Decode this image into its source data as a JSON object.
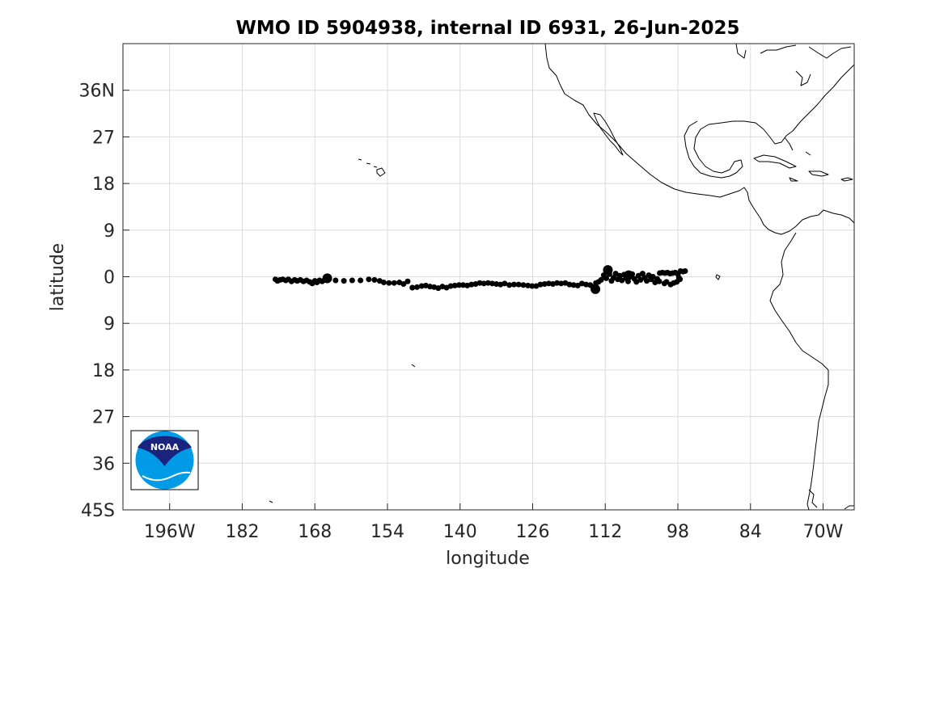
{
  "title": "WMO ID 5904938, internal ID 6931, 26-Jun-2025",
  "map": {
    "xlabel": "longitude",
    "ylabel": "latitude",
    "lon_range": [
      -205,
      -64
    ],
    "lat_range": [
      -45,
      45
    ],
    "x_ticks": [
      {
        "lon": -196,
        "label": "196W"
      },
      {
        "lon": -182,
        "label": "182"
      },
      {
        "lon": -168,
        "label": "168"
      },
      {
        "lon": -154,
        "label": "154"
      },
      {
        "lon": -140,
        "label": "140"
      },
      {
        "lon": -126,
        "label": "126"
      },
      {
        "lon": -112,
        "label": "112"
      },
      {
        "lon": -98,
        "label": "98"
      },
      {
        "lon": -84,
        "label": "84"
      },
      {
        "lon": -70,
        "label": "70W"
      }
    ],
    "y_ticks": [
      {
        "lat": 36,
        "label": "36N"
      },
      {
        "lat": 27,
        "label": "27"
      },
      {
        "lat": 18,
        "label": "18"
      },
      {
        "lat": 9,
        "label": "9"
      },
      {
        "lat": 0,
        "label": "0"
      },
      {
        "lat": -9,
        "label": "9"
      },
      {
        "lat": -18,
        "label": "18"
      },
      {
        "lat": -27,
        "label": "27"
      },
      {
        "lat": -36,
        "label": "36"
      },
      {
        "lat": -45,
        "label": "45S"
      }
    ],
    "grid": true,
    "logo_text": "NOAA",
    "marker_color": "#000000",
    "coastline_color": "#000000"
  },
  "chart_data": {
    "type": "scatter",
    "x_unit": "degrees longitude (negative = West)",
    "y_unit": "degrees latitude",
    "points": [
      [
        -175.6,
        -0.5
      ],
      [
        -175.2,
        -0.8
      ],
      [
        -174.7,
        -0.6
      ],
      [
        -174.2,
        -0.5
      ],
      [
        -173.6,
        -0.7
      ],
      [
        -173.1,
        -0.5
      ],
      [
        -172.5,
        -0.9
      ],
      [
        -171.9,
        -0.6
      ],
      [
        -171.4,
        -0.8
      ],
      [
        -170.8,
        -0.6
      ],
      [
        -170.2,
        -0.9
      ],
      [
        -169.6,
        -0.7
      ],
      [
        -169.0,
        -1.0
      ],
      [
        -168.5,
        -1.3
      ],
      [
        -168.0,
        -0.8
      ],
      [
        -167.6,
        -1.1
      ],
      [
        -167.1,
        -0.7
      ],
      [
        -166.6,
        -0.9
      ],
      [
        -166.1,
        -0.6
      ],
      [
        -165.6,
        -0.7
      ],
      [
        -164.0,
        -0.7
      ],
      [
        -162.4,
        -0.8
      ],
      [
        -160.8,
        -0.7
      ],
      [
        -159.2,
        -0.7
      ],
      [
        -157.6,
        -0.5
      ],
      [
        -156.5,
        -0.6
      ],
      [
        -155.5,
        -0.8
      ],
      [
        -154.7,
        -1.1
      ],
      [
        -153.7,
        -1.2
      ],
      [
        -152.7,
        -1.2
      ],
      [
        -151.7,
        -1.1
      ],
      [
        -150.9,
        -1.4
      ],
      [
        -150.1,
        -0.9
      ],
      [
        -149.2,
        -2.1
      ],
      [
        -148.3,
        -2.0
      ],
      [
        -147.4,
        -1.8
      ],
      [
        -146.6,
        -1.7
      ],
      [
        -145.8,
        -1.9
      ],
      [
        -145.0,
        -2.0
      ],
      [
        -144.2,
        -2.2
      ],
      [
        -143.4,
        -1.9
      ],
      [
        -142.6,
        -2.1
      ],
      [
        -141.8,
        -1.8
      ],
      [
        -141.0,
        -1.7
      ],
      [
        -140.2,
        -1.6
      ],
      [
        -139.4,
        -1.6
      ],
      [
        -138.6,
        -1.7
      ],
      [
        -137.8,
        -1.5
      ],
      [
        -137.0,
        -1.4
      ],
      [
        -136.2,
        -1.2
      ],
      [
        -135.4,
        -1.3
      ],
      [
        -134.6,
        -1.2
      ],
      [
        -133.8,
        -1.3
      ],
      [
        -133.0,
        -1.4
      ],
      [
        -132.2,
        -1.5
      ],
      [
        -131.4,
        -1.3
      ],
      [
        -130.5,
        -1.6
      ],
      [
        -129.6,
        -1.5
      ],
      [
        -128.7,
        -1.5
      ],
      [
        -127.8,
        -1.6
      ],
      [
        -126.9,
        -1.7
      ],
      [
        -126.1,
        -1.8
      ],
      [
        -125.3,
        -1.8
      ],
      [
        -124.5,
        -1.5
      ],
      [
        -123.7,
        -1.4
      ],
      [
        -122.9,
        -1.3
      ],
      [
        -122.1,
        -1.4
      ],
      [
        -121.3,
        -1.2
      ],
      [
        -120.5,
        -1.3
      ],
      [
        -119.7,
        -1.2
      ],
      [
        -118.9,
        -1.5
      ],
      [
        -118.1,
        -1.6
      ],
      [
        -117.3,
        -1.7
      ],
      [
        -116.5,
        -1.3
      ],
      [
        -115.7,
        -1.5
      ],
      [
        -114.9,
        -1.6
      ],
      [
        -114.4,
        -2.0
      ],
      [
        -114.0,
        -2.3
      ],
      [
        -113.8,
        -1.2
      ],
      [
        -113.3,
        -1.0
      ],
      [
        -112.8,
        -0.6
      ],
      [
        -112.3,
        0.3
      ],
      [
        -111.8,
        -0.3
      ],
      [
        -111.5,
        1.3
      ],
      [
        -111.2,
        0.5
      ],
      [
        -110.8,
        -0.8
      ],
      [
        -110.4,
        -0.2
      ],
      [
        -110.0,
        0.6
      ],
      [
        -109.6,
        -0.5
      ],
      [
        -109.2,
        0.2
      ],
      [
        -108.8,
        -0.7
      ],
      [
        -108.4,
        0.4
      ],
      [
        -108.0,
        -0.3
      ],
      [
        -107.6,
        -0.9
      ],
      [
        -107.2,
        0.1
      ],
      [
        -106.8,
        0.5
      ],
      [
        -106.4,
        -0.4
      ],
      [
        -106.0,
        -1.0
      ],
      [
        -105.6,
        0.2
      ],
      [
        -105.2,
        -0.6
      ],
      [
        -104.8,
        0.6
      ],
      [
        -104.4,
        -0.2
      ],
      [
        -104.0,
        -0.8
      ],
      [
        -103.6,
        0.3
      ],
      [
        -103.2,
        -0.5
      ],
      [
        -102.8,
        0.0
      ],
      [
        -102.4,
        -1.1
      ],
      [
        -102.0,
        -0.4
      ],
      [
        -101.5,
        0.7
      ],
      [
        -101.0,
        0.8
      ],
      [
        -100.5,
        0.7
      ],
      [
        -100.0,
        0.8
      ],
      [
        -99.5,
        0.6
      ],
      [
        -99.0,
        0.7
      ],
      [
        -98.5,
        0.8
      ],
      [
        -98.0,
        0.5
      ],
      [
        -97.5,
        1.1
      ],
      [
        -97.0,
        1.0
      ],
      [
        -96.6,
        1.1
      ],
      [
        -100.6,
        -1.3
      ],
      [
        -99.4,
        -1.5
      ],
      [
        -98.2,
        -1.0
      ],
      [
        -97.6,
        -0.5
      ],
      [
        -101.6,
        -0.9
      ],
      [
        -100.2,
        -1.0
      ],
      [
        -98.8,
        -1.2
      ],
      [
        -97.8,
        -0.2
      ]
    ],
    "large_points": [
      [
        -165.6,
        -0.3
      ],
      [
        -113.9,
        -2.4
      ],
      [
        -111.5,
        1.3
      ],
      [
        -107.5,
        0.3
      ]
    ]
  }
}
